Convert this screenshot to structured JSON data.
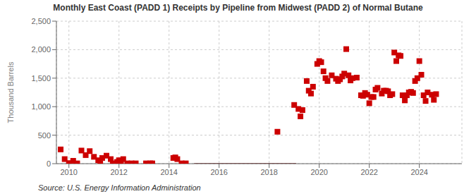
{
  "chart_data": {
    "type": "scatter",
    "title": "Monthly East Coast (PADD 1) Receipts by Pipeline from Midwest (PADD 2) of Normal Butane",
    "ylabel": "Thousand Barrels",
    "source": "Source: U.S. Energy Information Administration",
    "color": "#cc0000",
    "marker": "square",
    "grid": true,
    "xlim": [
      2009.5,
      2025.7
    ],
    "xticks": [
      2010,
      2012,
      2014,
      2016,
      2018,
      2020,
      2022,
      2024
    ],
    "ylim": [
      0,
      2500
    ],
    "yticks": [
      0,
      500,
      {
        "value": 1000,
        "label": "1,000"
      },
      {
        "value": 1500,
        "label": "1,500"
      },
      {
        "value": 2000,
        "label": "2,000"
      },
      {
        "value": 2500,
        "label": "2,500"
      }
    ],
    "x": [
      2009.67,
      2009.83,
      2010.0,
      2010.17,
      2010.33,
      2010.5,
      2010.67,
      2010.83,
      2011.0,
      2011.17,
      2011.25,
      2011.33,
      2011.5,
      2011.67,
      2011.75,
      2011.92,
      2012.0,
      2012.08,
      2012.17,
      2012.33,
      2012.5,
      2012.67,
      2013.08,
      2013.25,
      2013.33,
      2014.17,
      2014.25,
      2014.33,
      2014.5,
      2014.67,
      2018.33,
      2019.0,
      2019.17,
      2019.25,
      2019.33,
      2019.5,
      2019.58,
      2019.67,
      2019.75,
      2019.92,
      2020.0,
      2020.08,
      2020.17,
      2020.25,
      2020.33,
      2020.5,
      2020.67,
      2020.75,
      2020.83,
      2020.92,
      2021.0,
      2021.08,
      2021.17,
      2021.25,
      2021.33,
      2021.5,
      2021.67,
      2021.75,
      2021.83,
      2021.92,
      2022.0,
      2022.08,
      2022.17,
      2022.25,
      2022.33,
      2022.5,
      2022.58,
      2022.67,
      2022.75,
      2022.83,
      2022.92,
      2023.0,
      2023.08,
      2023.17,
      2023.25,
      2023.33,
      2023.42,
      2023.5,
      2023.58,
      2023.67,
      2023.75,
      2023.83,
      2023.92,
      2024.0,
      2024.08,
      2024.17,
      2024.25,
      2024.33,
      2024.5,
      2024.58,
      2024.67
    ],
    "values": [
      250,
      80,
      10,
      50,
      5,
      230,
      150,
      220,
      120,
      60,
      5,
      100,
      140,
      80,
      5,
      30,
      60,
      20,
      80,
      5,
      5,
      5,
      5,
      5,
      5,
      100,
      110,
      80,
      5,
      5,
      560,
      1030,
      960,
      830,
      940,
      1450,
      1280,
      1230,
      1350,
      1750,
      1800,
      1780,
      1620,
      1500,
      1450,
      1550,
      1490,
      1450,
      1480,
      1530,
      1580,
      2010,
      1550,
      1460,
      1500,
      1510,
      1200,
      1190,
      1240,
      1210,
      1060,
      1170,
      1170,
      1300,
      1330,
      1230,
      1280,
      1280,
      1270,
      1200,
      1220,
      1950,
      1800,
      1900,
      1890,
      1200,
      1110,
      1200,
      1250,
      1260,
      1240,
      1450,
      1500,
      1800,
      1560,
      1200,
      1100,
      1250,
      1210,
      1120,
      1220
    ],
    "ranges": [
      {
        "x_start": 2015.0,
        "x_end": 2019.08,
        "height": 18,
        "color": "#660000"
      }
    ]
  }
}
